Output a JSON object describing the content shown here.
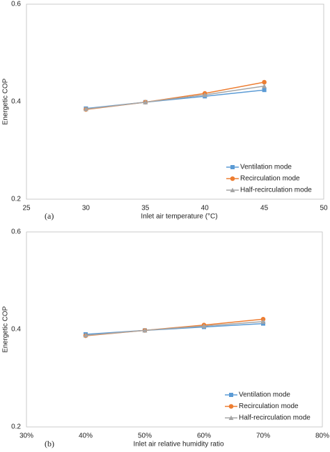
{
  "chart_data": [
    {
      "type": "line",
      "panel_label": "(a)",
      "xlabel": "Inlet air temperature (°C)",
      "ylabel": "Energetic COP",
      "x": [
        30,
        35,
        40,
        45
      ],
      "xlim": [
        25,
        50
      ],
      "xticks": [
        25,
        30,
        35,
        40,
        45,
        50
      ],
      "ylim": [
        0.2,
        0.6
      ],
      "yticks": [
        0.2,
        0.4,
        0.6
      ],
      "legend": "lower right",
      "series": [
        {
          "name": "Ventilation mode",
          "color": "#5b9bd5",
          "marker": "square",
          "values": [
            0.386,
            0.399,
            0.411,
            0.424
          ]
        },
        {
          "name": "Recirculation mode",
          "color": "#ed7d31",
          "marker": "circle",
          "values": [
            0.384,
            0.399,
            0.417,
            0.44
          ]
        },
        {
          "name": "Half-recirculation mode",
          "color": "#a5a5a5",
          "marker": "triangle",
          "values": [
            0.385,
            0.399,
            0.414,
            0.432
          ]
        }
      ]
    },
    {
      "type": "line",
      "panel_label": "(b)",
      "xlabel": "Inlet air relative humidity ratio",
      "ylabel": "Energetic COP",
      "x": [
        40,
        50,
        60,
        70
      ],
      "xlim": [
        30,
        80
      ],
      "xticks": [
        {
          "value": 30,
          "label": "30%"
        },
        {
          "value": 40,
          "label": "40%"
        },
        {
          "value": 50,
          "label": "50%"
        },
        {
          "value": 60,
          "label": "60%"
        },
        {
          "value": 70,
          "label": "70%"
        },
        {
          "value": 80,
          "label": "80%"
        }
      ],
      "ylim": [
        0.2,
        0.6
      ],
      "yticks": [
        0.2,
        0.4,
        0.6
      ],
      "legend": "lower right",
      "series": [
        {
          "name": "Ventilation mode",
          "color": "#5b9bd5",
          "marker": "square",
          "values": [
            0.39,
            0.398,
            0.405,
            0.412
          ]
        },
        {
          "name": "Recirculation mode",
          "color": "#ed7d31",
          "marker": "circle",
          "values": [
            0.387,
            0.398,
            0.409,
            0.421
          ]
        },
        {
          "name": "Half-recirculation mode",
          "color": "#a5a5a5",
          "marker": "triangle",
          "values": [
            0.388,
            0.398,
            0.407,
            0.416
          ]
        }
      ]
    }
  ]
}
